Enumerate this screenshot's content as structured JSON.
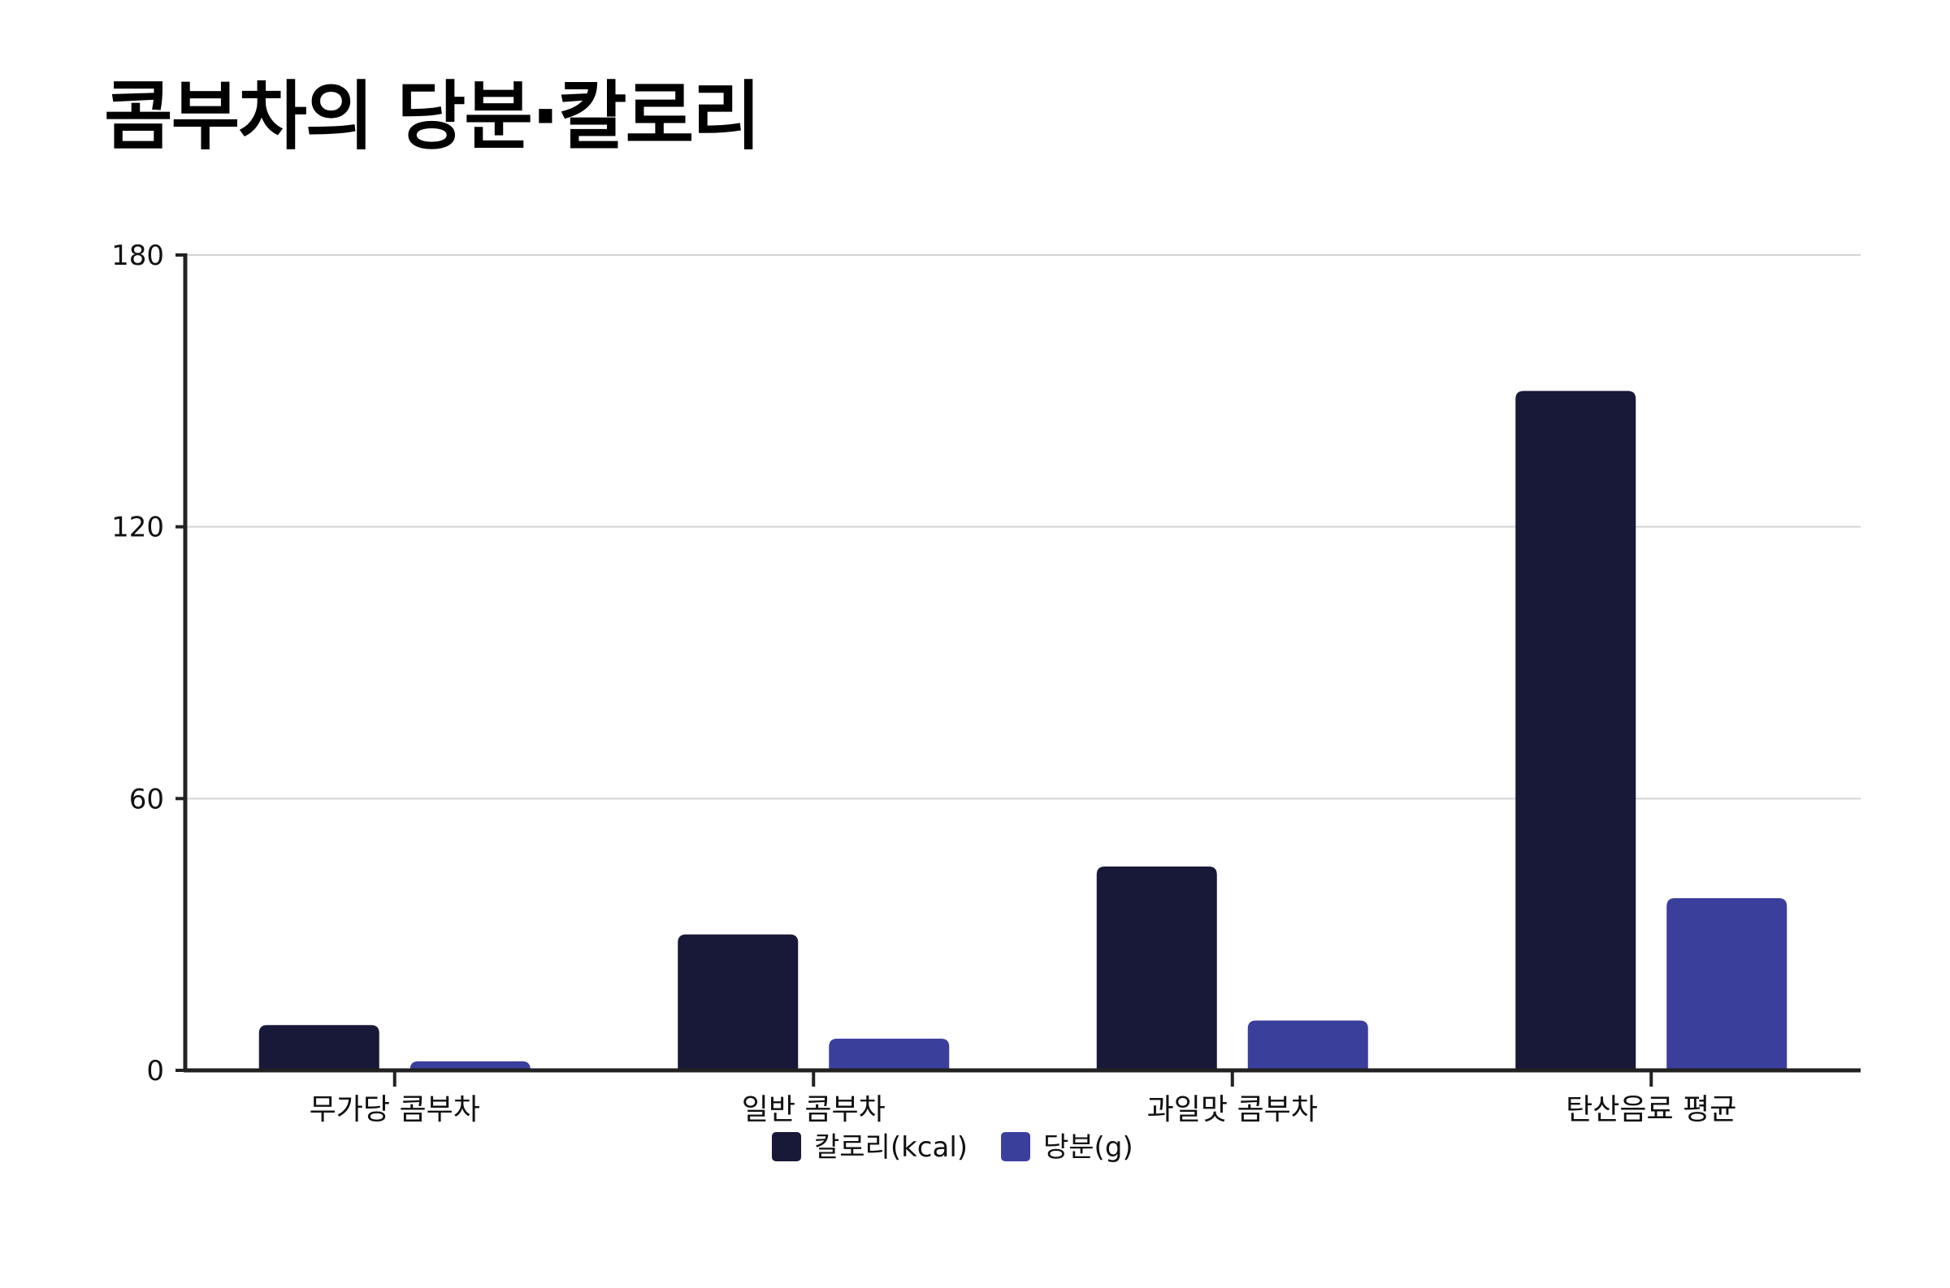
{
  "chart_data": {
    "type": "bar",
    "title": "콤부차의 당분·칼로리",
    "xlabel": "",
    "ylabel": "",
    "categories": [
      "무가당 콤부차",
      "일반 콤부차",
      "과일맛 콤부차",
      "탄산음료 평균"
    ],
    "series": [
      {
        "name": "칼로리(kcal)",
        "values": [
          10,
          30,
          45,
          150
        ],
        "color": "#181839"
      },
      {
        "name": "당분(g)",
        "values": [
          2,
          7,
          11,
          38
        ],
        "color": "#3b3f9c"
      }
    ],
    "ylim": [
      0,
      180
    ],
    "yticks": [
      "0",
      "60",
      "120",
      "180"
    ],
    "grid": true,
    "legend_position": "bottom-center"
  }
}
